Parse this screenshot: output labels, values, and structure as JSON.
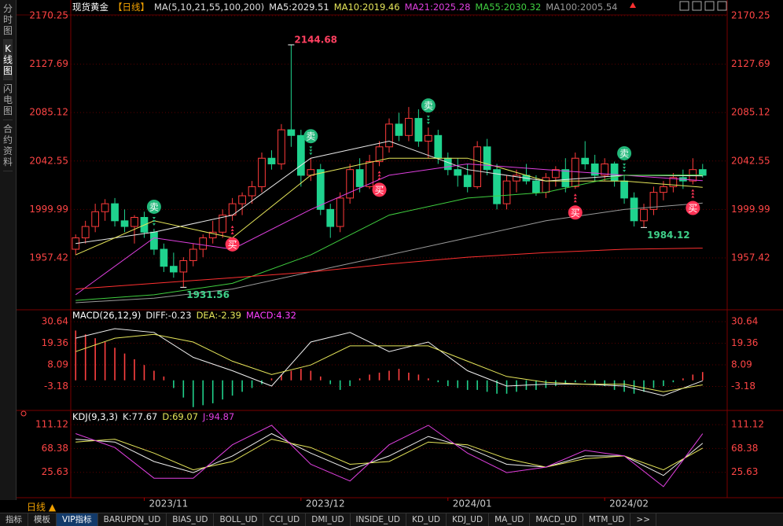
{
  "sidebar": {
    "tabs": [
      "分时图",
      "K线图",
      "闪电图",
      "合约资料"
    ],
    "active": 1
  },
  "chart_data": [
    {
      "type": "candlestick",
      "title": "现货黄金",
      "period": "【日线】",
      "subtitle": "MA(5,10,21,55,100,200)",
      "ylim": [
        1914.55,
        2170.25
      ],
      "yticks": [
        1957.42,
        1999.99,
        2042.55,
        2085.12,
        2127.69,
        2170.25
      ],
      "grid": true,
      "up_color": "#ff3b3b",
      "down_color": "#1fd38e",
      "xticks": [
        {
          "value": 7,
          "label": "2023/11"
        },
        {
          "value": 23,
          "label": "2023/12"
        },
        {
          "value": 38,
          "label": "2024/01"
        },
        {
          "value": 54,
          "label": "2024/02"
        }
      ],
      "ohlc": [
        [
          1965,
          1978,
          1960,
          1975
        ],
        [
          1975,
          1990,
          1970,
          1985
        ],
        [
          1985,
          2005,
          1980,
          1998
        ],
        [
          1998,
          2009,
          1990,
          2005
        ],
        [
          2005,
          2010,
          1985,
          1990
        ],
        [
          1990,
          2000,
          1980,
          1985
        ],
        [
          1985,
          1995,
          1970,
          1993
        ],
        [
          1993,
          1998,
          1975,
          1980
        ],
        [
          1980,
          1983,
          1960,
          1965
        ],
        [
          1965,
          1970,
          1945,
          1950
        ],
        [
          1950,
          1962,
          1940,
          1945
        ],
        [
          1945,
          1958,
          1931.56,
          1955
        ],
        [
          1955,
          1970,
          1950,
          1965
        ],
        [
          1965,
          1978,
          1958,
          1975
        ],
        [
          1975,
          1990,
          1970,
          1980
        ],
        [
          1980,
          2000,
          1975,
          1995
        ],
        [
          1995,
          2010,
          1990,
          2005
        ],
        [
          2005,
          2015,
          1995,
          2012
        ],
        [
          2012,
          2025,
          2005,
          2020
        ],
        [
          2020,
          2050,
          2015,
          2045
        ],
        [
          2045,
          2052,
          2035,
          2040
        ],
        [
          2040,
          2075,
          2035,
          2070
        ],
        [
          2070,
          2144.68,
          2055,
          2065
        ],
        [
          2065,
          2070,
          2020,
          2030
        ],
        [
          2030,
          2045,
          2025,
          2035
        ],
        [
          2035,
          2040,
          1995,
          2000
        ],
        [
          2000,
          2005,
          1975,
          1985
        ],
        [
          1985,
          2015,
          1980,
          2010
        ],
        [
          2010,
          2040,
          2005,
          2035
        ],
        [
          2035,
          2045,
          2015,
          2020
        ],
        [
          2020,
          2048,
          2018,
          2042
        ],
        [
          2042,
          2060,
          2038,
          2055
        ],
        [
          2055,
          2080,
          2050,
          2075
        ],
        [
          2075,
          2085,
          2060,
          2065
        ],
        [
          2065,
          2090,
          2060,
          2080
        ],
        [
          2080,
          2088,
          2055,
          2060
        ],
        [
          2060,
          2072,
          2045,
          2065
        ],
        [
          2065,
          2070,
          2040,
          2045
        ],
        [
          2045,
          2050,
          2030,
          2035
        ],
        [
          2035,
          2045,
          2020,
          2030
        ],
        [
          2030,
          2040,
          2015,
          2020
        ],
        [
          2020,
          2060,
          2018,
          2055
        ],
        [
          2055,
          2062,
          2030,
          2035
        ],
        [
          2035,
          2040,
          2000,
          2005
        ],
        [
          2005,
          2030,
          2000,
          2025
        ],
        [
          2025,
          2035,
          2015,
          2030
        ],
        [
          2030,
          2040,
          2022,
          2025
        ],
        [
          2025,
          2030,
          2012,
          2015
        ],
        [
          2015,
          2032,
          2010,
          2028
        ],
        [
          2028,
          2038,
          2020,
          2035
        ],
        [
          2035,
          2045,
          2015,
          2020
        ],
        [
          2020,
          2050,
          2018,
          2045
        ],
        [
          2045,
          2060,
          2035,
          2040
        ],
        [
          2040,
          2048,
          2025,
          2030
        ],
        [
          2030,
          2045,
          2025,
          2040
        ],
        [
          2040,
          2042,
          2020,
          2025
        ],
        [
          2025,
          2030,
          2005,
          2010
        ],
        [
          2010,
          2015,
          1985,
          1990
        ],
        [
          1990,
          2005,
          1984.12,
          2000
        ],
        [
          2000,
          2020,
          1995,
          2015
        ],
        [
          2015,
          2025,
          2008,
          2020
        ],
        [
          2020,
          2032,
          2015,
          2028
        ],
        [
          2028,
          2035,
          2018,
          2025
        ],
        [
          2025,
          2045,
          2022,
          2035
        ],
        [
          2035,
          2040,
          2028,
          2030
        ]
      ],
      "series": [
        {
          "name": "MA5:2029.51",
          "color": "#e8e8e8",
          "x": [
            0,
            8,
            16,
            24,
            32,
            40,
            48,
            56,
            64
          ],
          "values": [
            1970,
            1980,
            1995,
            2045,
            2060,
            2035,
            2025,
            2030,
            2029.51
          ]
        },
        {
          "name": "MA10:2019.46",
          "color": "#e6e65a",
          "x": [
            0,
            8,
            16,
            24,
            32,
            40,
            48,
            56,
            64
          ],
          "values": [
            1960,
            1990,
            1975,
            2030,
            2045,
            2045,
            2025,
            2025,
            2019.46
          ]
        },
        {
          "name": "MA21:2025.28",
          "color": "#e040e0",
          "x": [
            0,
            8,
            16,
            24,
            32,
            40,
            48,
            56,
            64
          ],
          "values": [
            1925,
            1975,
            1965,
            2000,
            2030,
            2040,
            2035,
            2030,
            2025.28
          ]
        },
        {
          "name": "MA55:2030.32",
          "color": "#40d040",
          "x": [
            0,
            8,
            16,
            24,
            32,
            40,
            48,
            56,
            64
          ],
          "values": [
            1920,
            1925,
            1935,
            1960,
            1995,
            2010,
            2015,
            2030,
            2030.32
          ]
        },
        {
          "name": "MA100:2005.54",
          "color": "#9a9a9a",
          "x": [
            0,
            8,
            16,
            24,
            32,
            40,
            48,
            56,
            64
          ],
          "values": [
            1918,
            1922,
            1930,
            1945,
            1960,
            1975,
            1990,
            2000,
            2005.54
          ]
        },
        {
          "color": "#ff3030",
          "x": [
            0,
            8,
            16,
            24,
            32,
            40,
            48,
            56,
            64
          ],
          "values": [
            1930,
            1935,
            1940,
            1945,
            1952,
            1958,
            1962,
            1965,
            1966
          ]
        }
      ],
      "annotations": [
        {
          "x": 22,
          "y": 2144.68,
          "color": "#ff4060"
        },
        {
          "x": 11,
          "y": 1931.56,
          "color": "#3fd08a"
        },
        {
          "x": 58,
          "y": 1984.12,
          "color": "#3fd08a"
        }
      ],
      "signals": [
        {
          "text": "卖",
          "x": 8,
          "side": "sell"
        },
        {
          "text": "卖",
          "x": 24,
          "side": "sell"
        },
        {
          "text": "卖",
          "x": 36,
          "side": "sell"
        },
        {
          "text": "卖",
          "x": 56,
          "side": "sell"
        },
        {
          "text": "买",
          "x": 16,
          "side": "buy"
        },
        {
          "text": "买",
          "x": 31,
          "side": "buy"
        },
        {
          "text": "买",
          "x": 51,
          "side": "buy"
        },
        {
          "text": "买",
          "x": 63,
          "side": "buy"
        }
      ]
    },
    {
      "type": "macd",
      "title": "MACD(26,12,9)",
      "ylim": [
        -14.9,
        35.2
      ],
      "yticks": [
        -3.18,
        8.09,
        19.36,
        30.64
      ],
      "grid": true,
      "histogram": {
        "name": "MACD:4.32",
        "color": "#ff40ff",
        "up_color": "#ff4040",
        "down_color": "#20d08a",
        "values": [
          26,
          24,
          22,
          20,
          17,
          14,
          11,
          8,
          5,
          2,
          -4,
          -9,
          -14,
          -13,
          -12,
          -10,
          -8,
          -6,
          -4,
          -2,
          1,
          3,
          5,
          6,
          5,
          2,
          -2,
          -5,
          -3,
          1,
          3,
          4,
          5,
          6,
          4,
          3,
          1,
          -1,
          -3,
          -4,
          -5,
          -5,
          -6,
          -7,
          -7,
          -6,
          -5,
          -5,
          -4,
          -3,
          -2,
          -1,
          -1,
          -2,
          -3,
          -5,
          -6,
          -7,
          -6,
          -4,
          -3,
          -1,
          1,
          3,
          4.32
        ]
      },
      "series": [
        {
          "name": "DIFF:-0.23",
          "color": "#f0f0f0",
          "x": [
            0,
            4,
            8,
            12,
            16,
            20,
            24,
            28,
            32,
            36,
            40,
            44,
            48,
            52,
            56,
            60,
            64
          ],
          "values": [
            22,
            27,
            25,
            12,
            5,
            -3,
            20,
            25,
            15,
            20,
            5,
            -3,
            -2,
            -2,
            -3,
            -8,
            -0.23
          ]
        },
        {
          "name": "DEA:-2.39",
          "color": "#e6e65a",
          "x": [
            0,
            4,
            8,
            12,
            16,
            20,
            24,
            28,
            32,
            36,
            40,
            44,
            48,
            52,
            56,
            60,
            64
          ],
          "values": [
            15,
            22,
            24,
            20,
            10,
            3,
            8,
            18,
            18,
            18,
            10,
            2,
            -1,
            -2,
            -2,
            -6,
            -2.39
          ]
        }
      ]
    },
    {
      "type": "line",
      "title": "KDJ(9,3,3)",
      "ylim": [
        -15.7,
        129.6
      ],
      "yticks": [
        25.63,
        68.38,
        111.12
      ],
      "grid": true,
      "series": [
        {
          "name": "K:77.67",
          "color": "#f0f0f0",
          "x": [
            0,
            4,
            8,
            12,
            16,
            20,
            24,
            28,
            32,
            36,
            40,
            44,
            48,
            52,
            56,
            60,
            64
          ],
          "values": [
            85,
            80,
            45,
            25,
            55,
            95,
            60,
            30,
            55,
            90,
            70,
            40,
            35,
            55,
            55,
            20,
            77.67
          ]
        },
        {
          "name": "D:69.07",
          "color": "#e6e65a",
          "x": [
            0,
            4,
            8,
            12,
            16,
            20,
            24,
            28,
            32,
            36,
            40,
            44,
            48,
            52,
            56,
            60,
            64
          ],
          "values": [
            80,
            85,
            60,
            30,
            45,
            85,
            70,
            40,
            45,
            80,
            75,
            50,
            35,
            50,
            55,
            30,
            69.07
          ]
        },
        {
          "name": "J:94.87",
          "color": "#e040e0",
          "x": [
            0,
            4,
            8,
            12,
            16,
            20,
            24,
            28,
            32,
            36,
            40,
            44,
            48,
            52,
            56,
            60,
            64
          ],
          "values": [
            95,
            70,
            15,
            15,
            75,
            110,
            40,
            10,
            75,
            110,
            60,
            25,
            35,
            65,
            55,
            0,
            94.87
          ]
        }
      ]
    }
  ],
  "footer": {
    "period": "日线 ▲",
    "tabs": [
      "指标",
      "模板",
      "VIP指标",
      "BARUPDN_UD",
      "BIAS_UD",
      "BOLL_UD",
      "CCI_UD",
      "DMI_UD",
      "INSIDE_UD",
      "KD_UD",
      "KDJ_UD",
      "MA_UD",
      "MACD_UD",
      "MTM_UD",
      ">>"
    ],
    "active": 2
  }
}
